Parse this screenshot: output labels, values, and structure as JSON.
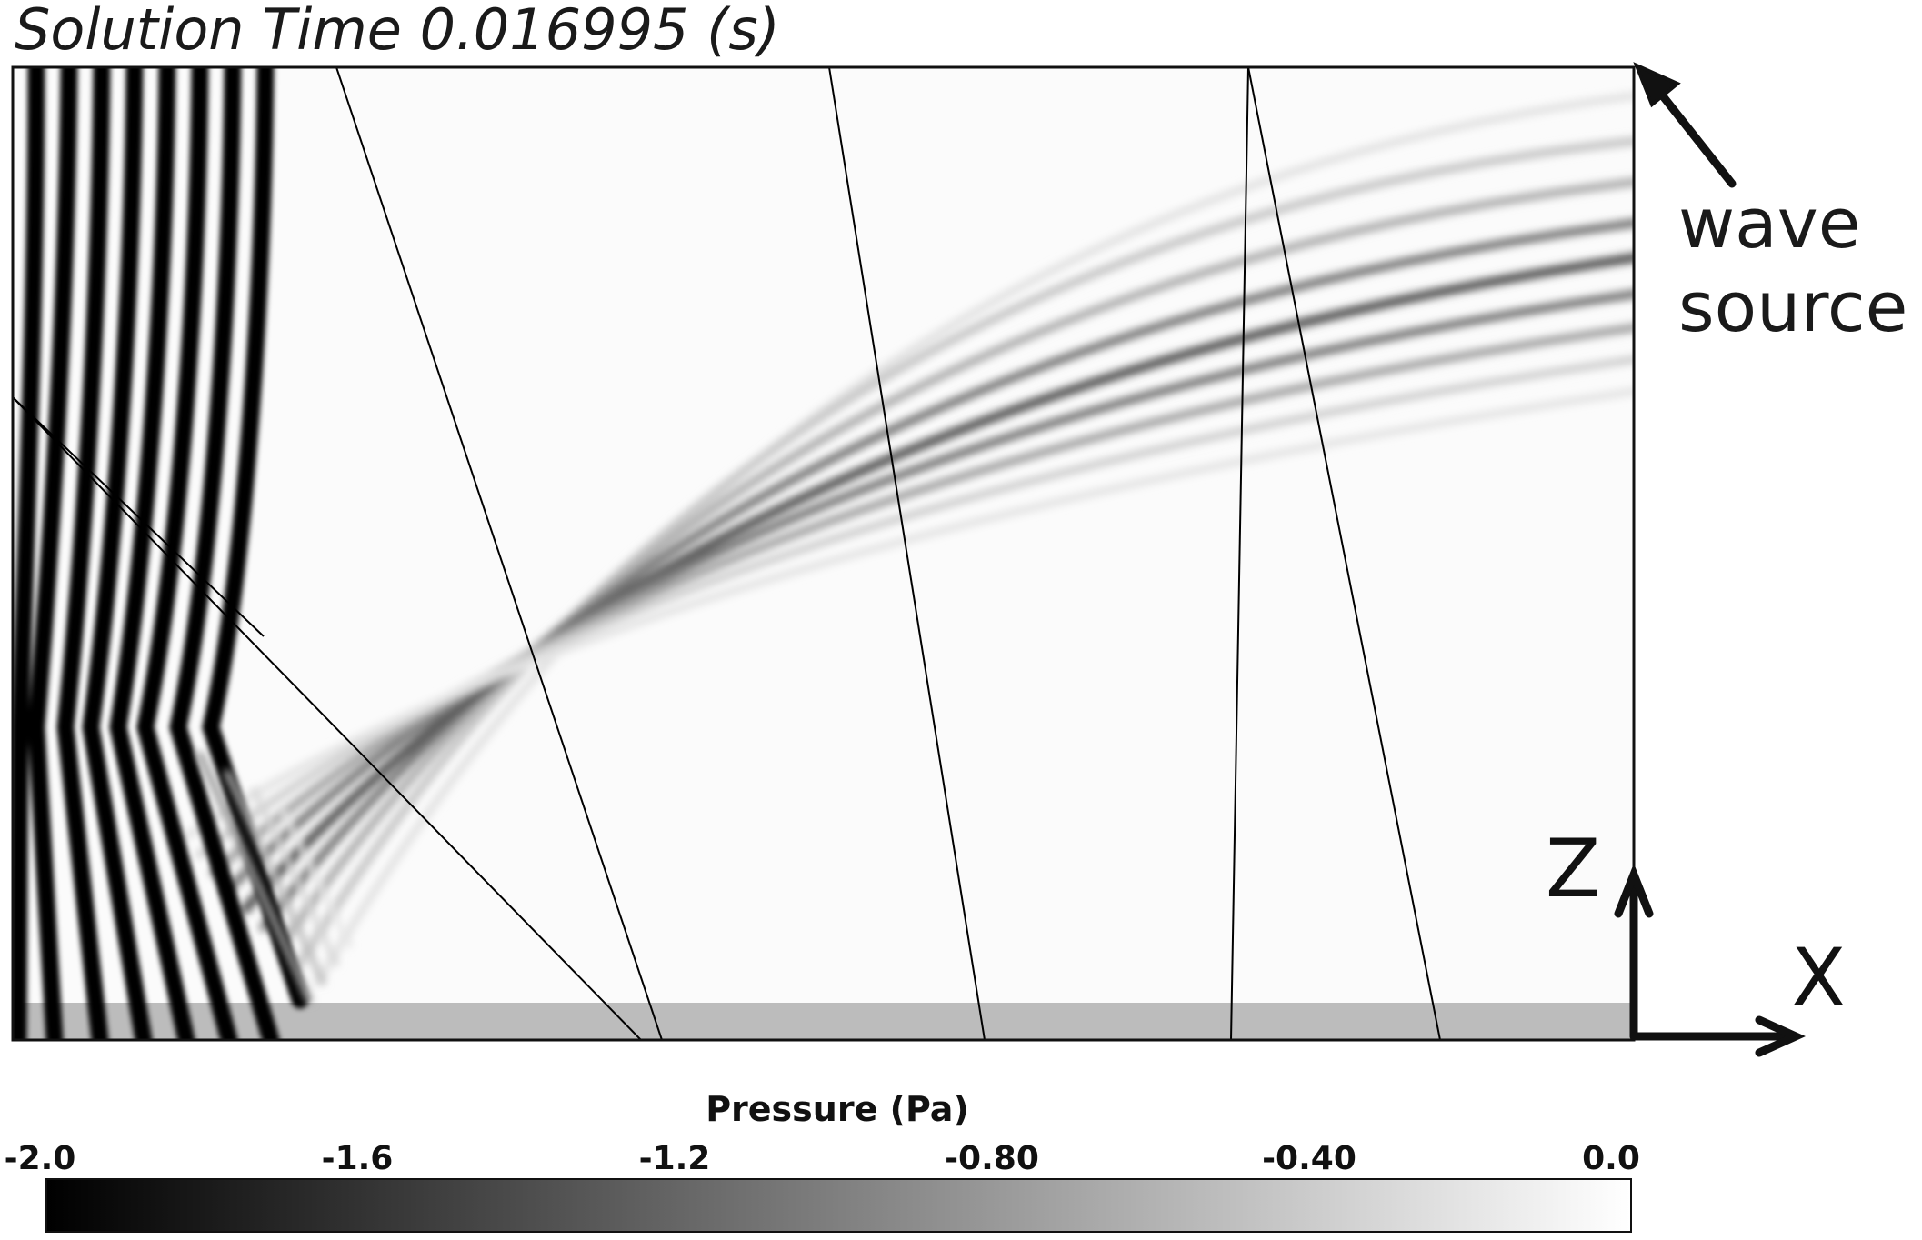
{
  "title": "Solution Time 0.016995 (s)",
  "source_label": {
    "line1": "wave",
    "line2": "source"
  },
  "axes": {
    "vertical": "Z",
    "horizontal": "X"
  },
  "colorbar": {
    "title": "Pressure (Pa)",
    "ticks": [
      "-2.0",
      "-1.6",
      "-1.2",
      "-0.80",
      "-0.40",
      "0.0"
    ],
    "min": -2.0,
    "max": 0.0,
    "gradient_colors": [
      "#000000",
      "#ffffff"
    ]
  },
  "colors": {
    "background": "#fbfbfb",
    "ground_strip": "#bcbcbc",
    "frame": "#111111"
  }
}
